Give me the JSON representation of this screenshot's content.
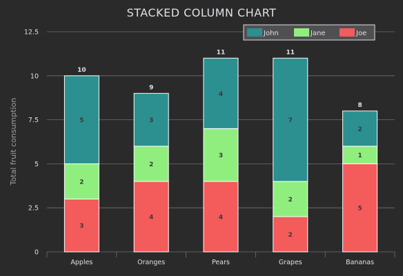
{
  "chart_data": {
    "type": "bar",
    "stacked": true,
    "title": "STACKED COLUMN CHART",
    "xlabel": "",
    "ylabel": "Total fruit consumption",
    "ylim": [
      0,
      12.5
    ],
    "yticks": [
      "0",
      "2.5",
      "5",
      "7.5",
      "10",
      "12.5"
    ],
    "categories": [
      "Apples",
      "Oranges",
      "Pears",
      "Grapes",
      "Bananas"
    ],
    "series": [
      {
        "name": "John",
        "values": [
          5,
          3,
          4,
          7,
          2
        ],
        "color": "#2b908f"
      },
      {
        "name": "Jane",
        "values": [
          2,
          2,
          3,
          2,
          1
        ],
        "color": "#90ee7e"
      },
      {
        "name": "Joe",
        "values": [
          3,
          4,
          4,
          2,
          5
        ],
        "color": "#f45b5b"
      }
    ],
    "totals": [
      10,
      9,
      11,
      11,
      8
    ],
    "grid": true,
    "legend": "top-right",
    "background": "#2a2a2b"
  }
}
